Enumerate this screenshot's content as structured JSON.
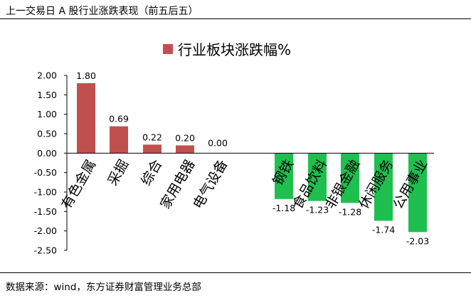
{
  "header": {
    "title": "上一交易日 A 股行业涨跌表现（前五后五）"
  },
  "footer": {
    "source": "数据来源：wind，东方证券财富管理业务总部"
  },
  "chart_data": {
    "type": "bar",
    "title": "行业板块涨跌幅%",
    "legend": {
      "label": "行业板块涨跌幅%",
      "color": "#c0504d",
      "position": "top-center"
    },
    "categories": [
      "有色金属",
      "采掘",
      "综合",
      "家用电器",
      "电气设备",
      "钢铁",
      "食品饮料",
      "非银金融",
      "休闲服务",
      "公用事业"
    ],
    "values": [
      1.8,
      0.69,
      0.22,
      0.2,
      0.0,
      -1.18,
      -1.23,
      -1.28,
      -1.74,
      -2.03
    ],
    "data_labels": [
      "1.80",
      "0.69",
      "0.22",
      "0.20",
      "0.00",
      "-1.18",
      "-1.23",
      "-1.28",
      "-1.74",
      "-2.03"
    ],
    "positive_color": "#c0504d",
    "negative_color": "#1fbf4f",
    "ylim": [
      -2.5,
      2.0
    ],
    "yticks": [
      2.0,
      1.5,
      1.0,
      0.5,
      0.0,
      -0.5,
      -1.0,
      -1.5,
      -2.0,
      -2.5
    ],
    "ytick_labels": [
      "2.00",
      "1.50",
      "1.00",
      "0.50",
      "0.00",
      "-0.50",
      "-1.00",
      "-1.50",
      "-2.00",
      "-2.50"
    ],
    "xlabel": "",
    "ylabel": "",
    "grid": false
  }
}
